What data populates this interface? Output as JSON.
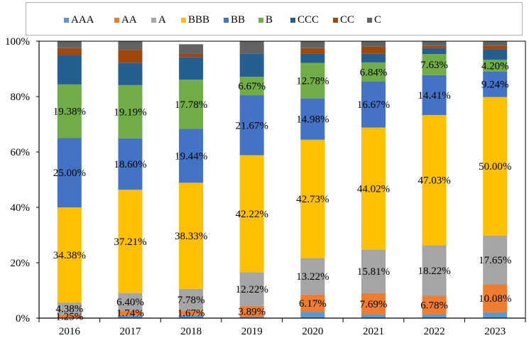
{
  "chart_data": {
    "type": "bar",
    "stacked": true,
    "percent_stacked": true,
    "title": "",
    "xlabel": "",
    "ylabel": "",
    "ylim": [
      0,
      100
    ],
    "y_ticks": [
      "0%",
      "20%",
      "40%",
      "60%",
      "80%",
      "100%"
    ],
    "grid": false,
    "legend_position": "top",
    "categories": [
      "2016",
      "2017",
      "2018",
      "2019",
      "2020",
      "2021",
      "2022",
      "2023"
    ],
    "series": [
      {
        "name": "AAA",
        "color": "#5B9BD5",
        "values": [
          0.0,
          1.0,
          1.1,
          0.5,
          2.3,
          1.3,
          1.3,
          2.1
        ],
        "labels": [
          null,
          null,
          null,
          null,
          null,
          null,
          null,
          null
        ]
      },
      {
        "name": "AA",
        "color": "#ED7D31",
        "values": [
          1.25,
          1.74,
          1.67,
          3.89,
          6.17,
          7.69,
          6.78,
          10.08
        ],
        "labels": [
          "1.25%",
          "1.74%",
          "1.67%",
          "3.89%",
          "6.17%",
          "7.69%",
          "6.78%",
          "10.08%"
        ]
      },
      {
        "name": "A",
        "color": "#A5A5A5",
        "values": [
          4.38,
          6.4,
          7.78,
          12.22,
          13.22,
          15.81,
          18.22,
          17.65
        ],
        "labels": [
          "4.38%",
          "6.40%",
          "7.78%",
          "12.22%",
          "13.22%",
          "15.81%",
          "18.22%",
          "17.65%"
        ]
      },
      {
        "name": "BBB",
        "color": "#FFC000",
        "values": [
          34.38,
          37.21,
          38.33,
          42.22,
          42.73,
          44.02,
          47.03,
          50.0
        ],
        "labels": [
          "34.38%",
          "37.21%",
          "38.33%",
          "42.22%",
          "42.73%",
          "44.02%",
          "47.03%",
          "50.00%"
        ]
      },
      {
        "name": "BB",
        "color": "#4472C4",
        "values": [
          25.0,
          18.6,
          19.44,
          21.67,
          14.98,
          16.67,
          14.41,
          9.24
        ],
        "labels": [
          "25.00%",
          "18.60%",
          "19.44%",
          "21.67%",
          "14.98%",
          "16.67%",
          "14.41%",
          "9.24%"
        ]
      },
      {
        "name": "B",
        "color": "#70AD47",
        "values": [
          19.38,
          19.19,
          17.78,
          6.67,
          12.78,
          6.84,
          7.63,
          4.2
        ],
        "labels": [
          "19.38%",
          "19.19%",
          "17.78%",
          "6.67%",
          "12.78%",
          "6.84%",
          "7.63%",
          "4.20%"
        ]
      },
      {
        "name": "CCC",
        "color": "#255E91",
        "values": [
          10.6,
          8.1,
          8.2,
          8.4,
          3.3,
          3.1,
          2.1,
          3.8
        ],
        "labels": [
          null,
          null,
          null,
          null,
          null,
          null,
          null,
          null
        ]
      },
      {
        "name": "CC",
        "color": "#9E480E",
        "values": [
          2.5,
          4.65,
          1.1,
          0.0,
          2.0,
          2.6,
          0.8,
          1.3
        ],
        "labels": [
          null,
          null,
          null,
          null,
          null,
          null,
          null,
          null
        ]
      },
      {
        "name": "C",
        "color": "#636363",
        "values": [
          2.5,
          3.1,
          3.5,
          4.4,
          2.5,
          2.0,
          1.7,
          1.6
        ],
        "labels": [
          null,
          null,
          null,
          null,
          null,
          null,
          null,
          null
        ]
      }
    ]
  }
}
